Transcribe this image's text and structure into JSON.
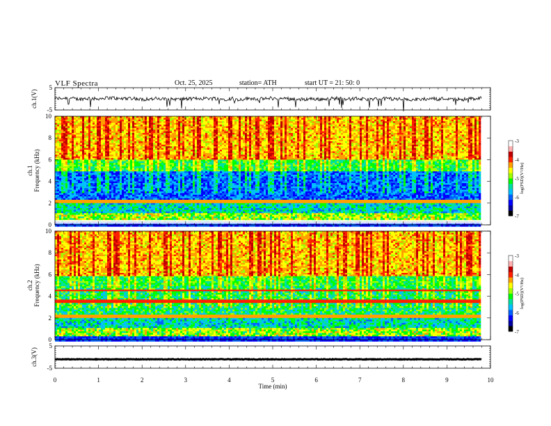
{
  "header": {
    "title": "VLF  Spectra",
    "date": "Oct. 25, 2025",
    "station": "station= ATH",
    "start_ut": "start  UT  =    21: 50: 0"
  },
  "colors": {
    "colormap": [
      "#000000",
      "#0000a0",
      "#0000ff",
      "#0060ff",
      "#00c0ff",
      "#00e0a0",
      "#00ff00",
      "#a0ff00",
      "#ffff00",
      "#ffa000",
      "#ff2000",
      "#c00000",
      "#ffb0b0",
      "#ffffff"
    ],
    "trace": "#000000"
  },
  "chart_data": [
    {
      "type": "line",
      "name": "ch1-waveform",
      "ylabel": "ch.1(V)",
      "ylim": [
        -5,
        5
      ],
      "ytick_labels": [
        "5",
        "-5"
      ],
      "x_range_min": [
        0,
        9.8
      ],
      "description_level": "noisy trace near 0 V"
    },
    {
      "type": "heatmap",
      "name": "ch1-spectrogram",
      "ylabel": "ch.1\nFrequency  (kHz)",
      "ylim": [
        0,
        10
      ],
      "ytick_labels": [
        "0",
        "2",
        "4",
        "6",
        "8",
        "10"
      ],
      "x_range_min": [
        0,
        9.8
      ],
      "colorbar": {
        "label": "log(PSD)(V²/Hz)",
        "range": [
          -7,
          -3
        ],
        "tick_labels": [
          "-3",
          "-4",
          "-5",
          "-6",
          "-7"
        ]
      }
    },
    {
      "type": "heatmap",
      "name": "ch2-spectrogram",
      "ylabel": "ch.2\nFrequency  (kHz)",
      "ylim": [
        0,
        10
      ],
      "ytick_labels": [
        "0",
        "2",
        "4",
        "6",
        "8",
        "10"
      ],
      "x_range_min": [
        0,
        9.8
      ],
      "colorbar": {
        "label": "log(PSD)(V²/Hz)",
        "range": [
          -7,
          -3
        ],
        "tick_labels": [
          "-3",
          "-4",
          "-5",
          "-6",
          "-7"
        ]
      }
    },
    {
      "type": "line",
      "name": "ch3-waveform",
      "ylabel": "ch.3(V)",
      "ylim": [
        -5,
        5
      ],
      "ytick_labels": [
        "5",
        "-5"
      ],
      "x_range_min": [
        0,
        9.8
      ],
      "description_level": "flat trace near -1 V"
    }
  ],
  "xaxis": {
    "label": "Time  (min)",
    "range": [
      0,
      10
    ],
    "tick_labels": [
      "0",
      "1",
      "2",
      "3",
      "4",
      "5",
      "6",
      "7",
      "8",
      "9",
      "10"
    ]
  }
}
